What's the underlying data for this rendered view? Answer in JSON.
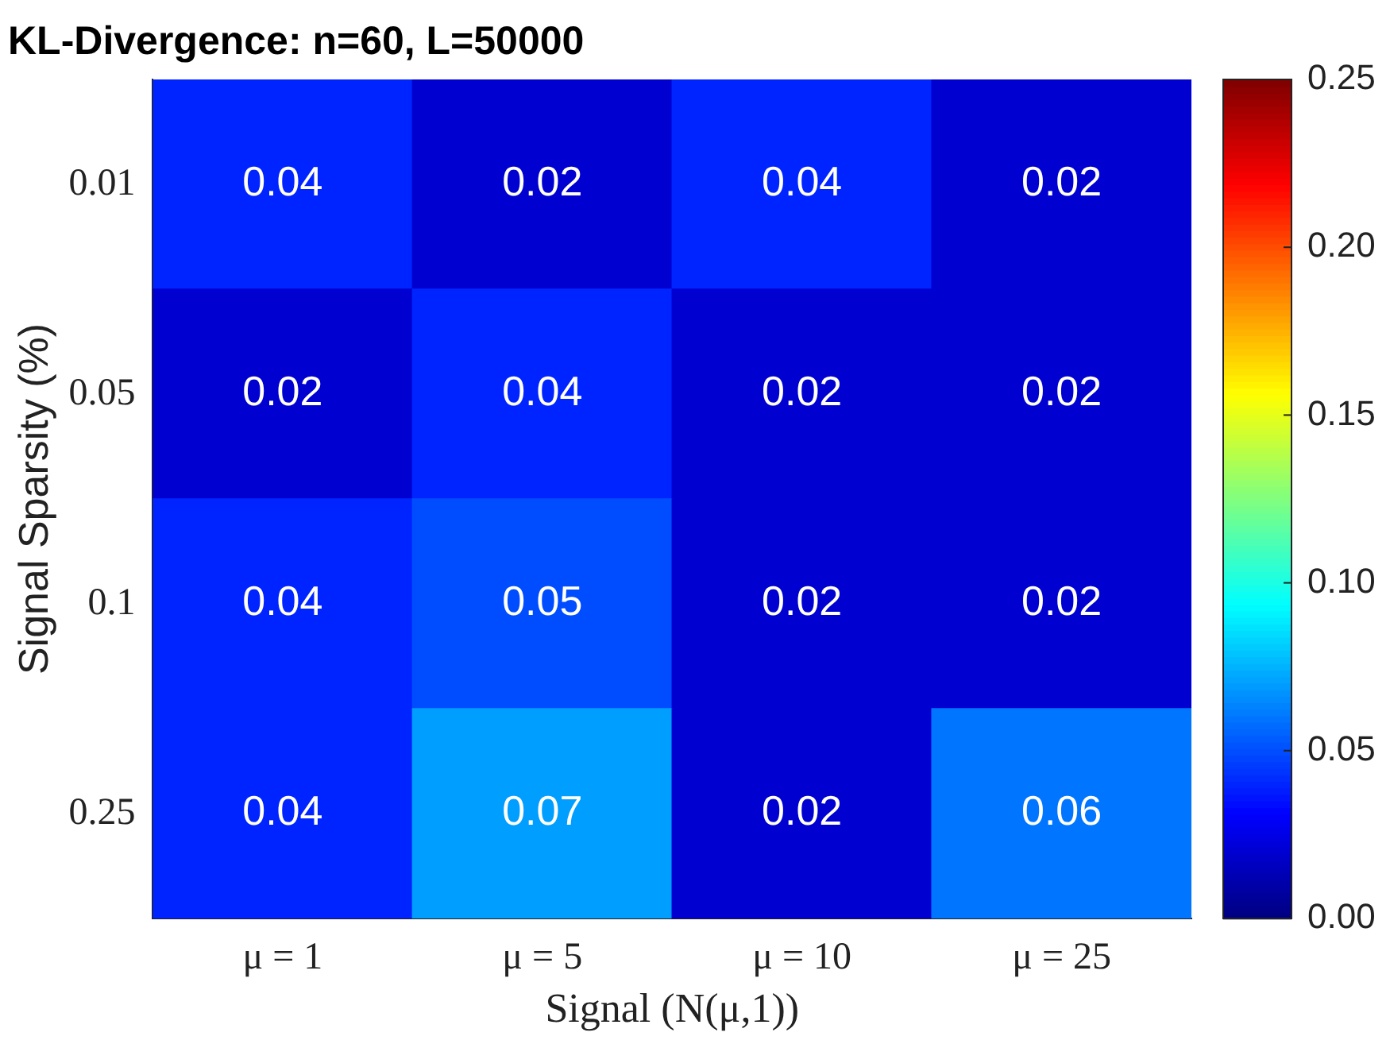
{
  "chart_data": {
    "type": "heatmap",
    "title": "KL-Divergence: n=60, L=50000",
    "xlabel": "Signal (N(μ,1))",
    "ylabel": "Signal Sparsity (%)",
    "categories": [
      "μ = 1",
      "μ = 5",
      "μ = 10",
      "μ = 25"
    ],
    "y_categories": [
      "0.01",
      "0.05",
      "0.1",
      "0.25"
    ],
    "cells": [
      [
        0.04,
        0.02,
        0.04,
        0.02
      ],
      [
        0.02,
        0.04,
        0.02,
        0.02
      ],
      [
        0.04,
        0.05,
        0.02,
        0.02
      ],
      [
        0.04,
        0.07,
        0.02,
        0.06
      ]
    ],
    "data_labels": true,
    "clim": [
      0,
      0.25
    ],
    "cticks": [
      {
        "value": 0,
        "label": "0.00"
      },
      {
        "value": 0.05,
        "label": "0.05"
      },
      {
        "value": 0.1,
        "label": "0.10"
      },
      {
        "value": 0.15,
        "label": "0.15"
      },
      {
        "value": 0.2,
        "label": "0.20"
      },
      {
        "value": 0.25,
        "label": "0.25"
      }
    ]
  }
}
